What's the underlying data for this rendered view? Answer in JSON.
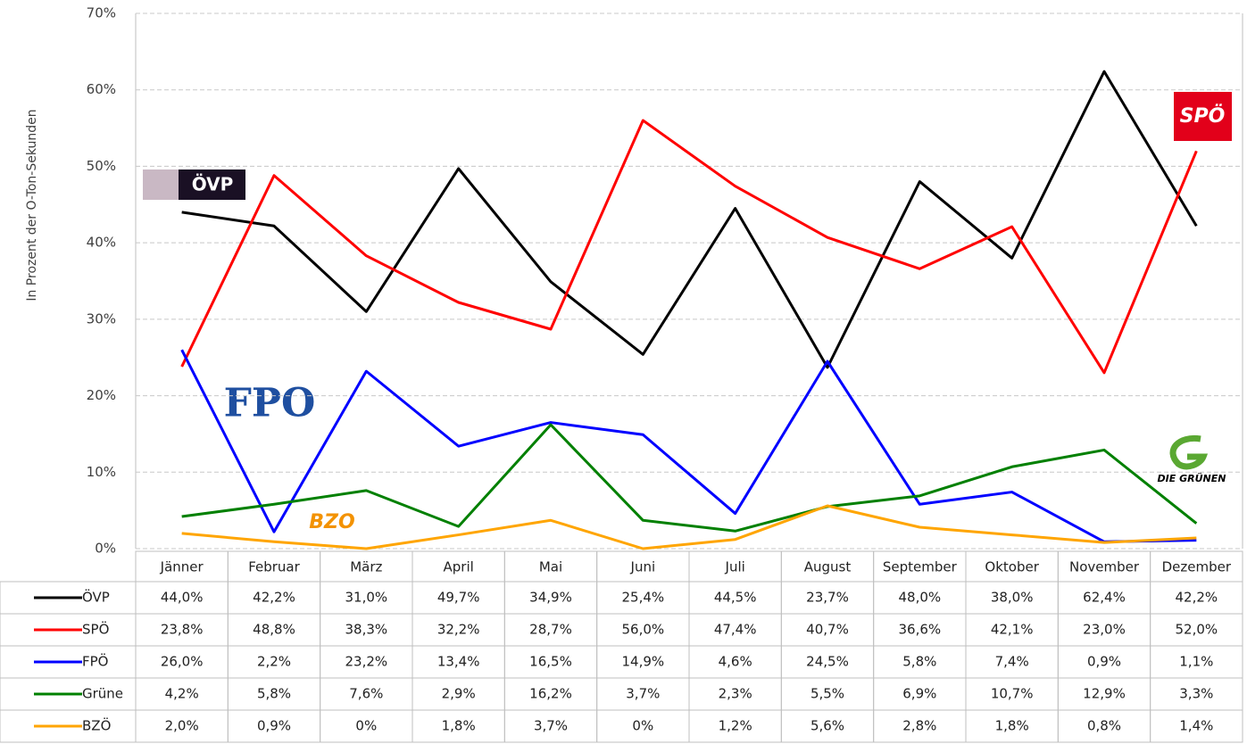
{
  "chart_data": {
    "type": "line",
    "y_label": "In Prozent der O-Ton-Sekunden",
    "categories": [
      "Jänner",
      "Februar",
      "März",
      "April",
      "Mai",
      "Juni",
      "Juli",
      "August",
      "September",
      "Oktober",
      "November",
      "Dezember"
    ],
    "series": [
      {
        "name": "ÖVP",
        "color": "#000000",
        "values": [
          44.0,
          42.2,
          31.0,
          49.7,
          34.9,
          25.4,
          44.5,
          23.7,
          48.0,
          38.0,
          62.4,
          42.2
        ],
        "value_labels": [
          "44,0%",
          "42,2%",
          "31,0%",
          "49,7%",
          "34,9%",
          "25,4%",
          "44,5%",
          "23,7%",
          "48,0%",
          "38,0%",
          "62,4%",
          "42,2%"
        ]
      },
      {
        "name": "SPÖ",
        "color": "#ff0000",
        "values": [
          23.8,
          48.8,
          38.3,
          32.2,
          28.7,
          56.0,
          47.4,
          40.7,
          36.6,
          42.1,
          23.0,
          52.0
        ],
        "value_labels": [
          "23,8%",
          "48,8%",
          "38,3%",
          "32,2%",
          "28,7%",
          "56,0%",
          "47,4%",
          "40,7%",
          "36,6%",
          "42,1%",
          "23,0%",
          "52,0%"
        ]
      },
      {
        "name": "FPÖ",
        "color": "#0000ff",
        "values": [
          26.0,
          2.2,
          23.2,
          13.4,
          16.5,
          14.9,
          4.6,
          24.5,
          5.8,
          7.4,
          0.9,
          1.1
        ],
        "value_labels": [
          "26,0%",
          "2,2%",
          "23,2%",
          "13,4%",
          "16,5%",
          "14,9%",
          "4,6%",
          "24,5%",
          "5,8%",
          "7,4%",
          "0,9%",
          "1,1%"
        ]
      },
      {
        "name": "Grüne",
        "color": "#008000",
        "values": [
          4.2,
          5.8,
          7.6,
          2.9,
          16.2,
          3.7,
          2.3,
          5.5,
          6.9,
          10.7,
          12.9,
          3.3
        ],
        "value_labels": [
          "4,2%",
          "5,8%",
          "7,6%",
          "2,9%",
          "16,2%",
          "3,7%",
          "2,3%",
          "5,5%",
          "6,9%",
          "10,7%",
          "12,9%",
          "3,3%"
        ]
      },
      {
        "name": "BZÖ",
        "color": "#ffa500",
        "values": [
          2.0,
          0.9,
          0,
          1.8,
          3.7,
          0,
          1.2,
          5.6,
          2.8,
          1.8,
          0.8,
          1.4
        ],
        "value_labels": [
          "2,0%",
          "0,9%",
          "0%",
          "1,8%",
          "3,7%",
          "0%",
          "1,2%",
          "5,6%",
          "2,8%",
          "1,8%",
          "0,8%",
          "1,4%"
        ]
      }
    ],
    "ylim": [
      0,
      70
    ],
    "yticks": [
      {
        "value": 0,
        "label": "0%"
      },
      {
        "value": 10,
        "label": "10%"
      },
      {
        "value": 20,
        "label": "20%"
      },
      {
        "value": 30,
        "label": "30%"
      },
      {
        "value": 40,
        "label": "40%"
      },
      {
        "value": 50,
        "label": "50%"
      },
      {
        "value": 60,
        "label": "60%"
      },
      {
        "value": 70,
        "label": "70%"
      }
    ],
    "grid": true,
    "logos": {
      "ovp": "ÖVP",
      "spo": "SPÖ",
      "fpo": "FPO",
      "bzo": "BZO",
      "gruene": "DIE GRÜNEN"
    }
  }
}
